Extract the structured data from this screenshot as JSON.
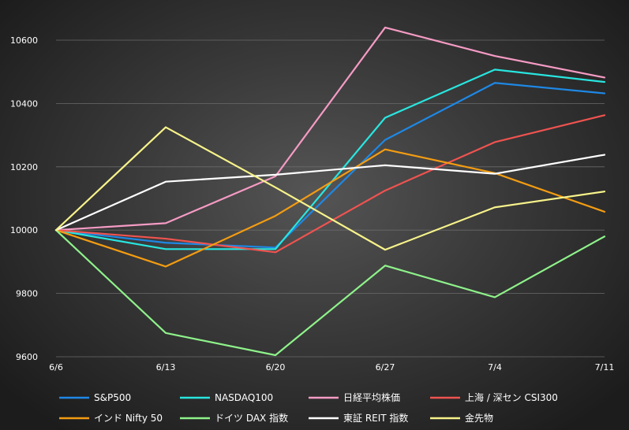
{
  "chart_data": {
    "type": "line",
    "x": [
      "6/6",
      "6/13",
      "6/20",
      "6/27",
      "7/4",
      "7/11"
    ],
    "ylim": [
      9600,
      10600
    ],
    "yticks": [
      9600,
      9800,
      10000,
      10200,
      10400,
      10600
    ],
    "grid": true,
    "legend_position": "bottom",
    "series": [
      {
        "name": "S&P500",
        "color": "#1e88e5",
        "values": [
          10000,
          9960,
          9945,
          10285,
          10465,
          10432
        ]
      },
      {
        "name": "NASDAQ100",
        "color": "#28e6e0",
        "values": [
          10000,
          9940,
          9940,
          10355,
          10507,
          10468
        ]
      },
      {
        "name": "日経平均株価",
        "color": "#f59bc4",
        "values": [
          10000,
          10022,
          10170,
          10640,
          10550,
          10482
        ]
      },
      {
        "name": "上海 / 深セン CSI300",
        "color": "#ef5350",
        "values": [
          10000,
          9973,
          9930,
          10125,
          10278,
          10363
        ]
      },
      {
        "name": "インド Nifty 50",
        "color": "#f39c12",
        "values": [
          10000,
          9885,
          10045,
          10255,
          10180,
          10058
        ]
      },
      {
        "name": "ドイツ DAX 指数",
        "color": "#8ef28a",
        "values": [
          10000,
          9675,
          9605,
          9888,
          9788,
          9980
        ]
      },
      {
        "name": "東証 REIT 指数",
        "color": "#ffffff",
        "values": [
          10000,
          10153,
          10175,
          10205,
          10178,
          10238
        ]
      },
      {
        "name": "金先物",
        "color": "#f7f38a",
        "values": [
          10000,
          10325,
          10135,
          9938,
          10072,
          10122
        ]
      }
    ]
  }
}
